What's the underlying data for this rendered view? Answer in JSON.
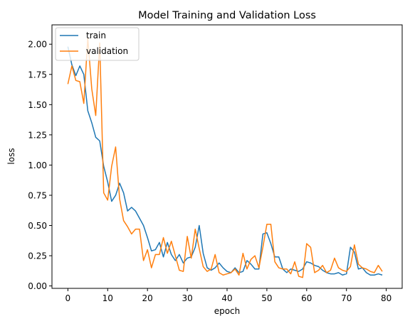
{
  "chart_data": {
    "type": "line",
    "title": "Model Training and Validation Loss",
    "xlabel": "epoch",
    "ylabel": "loss",
    "xlim": [
      -4,
      84
    ],
    "ylim": [
      -0.02,
      2.16
    ],
    "xticks": [
      0,
      10,
      20,
      30,
      40,
      50,
      60,
      70,
      80
    ],
    "yticks": [
      0.0,
      0.25,
      0.5,
      0.75,
      1.0,
      1.25,
      1.5,
      1.75,
      2.0
    ],
    "ytick_labels": [
      "0.00",
      "0.25",
      "0.50",
      "0.75",
      "1.00",
      "1.25",
      "1.50",
      "1.75",
      "2.00"
    ],
    "xtick_labels": [
      "0",
      "10",
      "20",
      "30",
      "40",
      "50",
      "60",
      "70",
      "80"
    ],
    "grid": false,
    "legend_position": "top-left",
    "series": [
      {
        "name": "train",
        "color": "#1f77b4",
        "values": [
          1.98,
          1.83,
          1.74,
          1.82,
          1.75,
          1.45,
          1.35,
          1.23,
          1.2,
          0.99,
          0.86,
          0.7,
          0.75,
          0.85,
          0.77,
          0.62,
          0.65,
          0.62,
          0.56,
          0.5,
          0.4,
          0.29,
          0.3,
          0.36,
          0.24,
          0.36,
          0.26,
          0.21,
          0.26,
          0.19,
          0.23,
          0.24,
          0.32,
          0.5,
          0.27,
          0.15,
          0.13,
          0.15,
          0.19,
          0.15,
          0.12,
          0.11,
          0.15,
          0.11,
          0.12,
          0.21,
          0.18,
          0.14,
          0.14,
          0.43,
          0.44,
          0.35,
          0.24,
          0.24,
          0.14,
          0.11,
          0.14,
          0.13,
          0.12,
          0.14,
          0.2,
          0.19,
          0.17,
          0.16,
          0.13,
          0.11,
          0.1,
          0.1,
          0.11,
          0.09,
          0.1,
          0.32,
          0.28,
          0.14,
          0.15,
          0.11,
          0.09,
          0.09,
          0.1,
          0.09
        ]
      },
      {
        "name": "validation",
        "color": "#ff7f0e",
        "values": [
          1.67,
          1.82,
          1.7,
          1.69,
          1.51,
          2.05,
          1.63,
          1.41,
          2.01,
          0.77,
          0.71,
          0.99,
          1.15,
          0.72,
          0.54,
          0.49,
          0.43,
          0.47,
          0.47,
          0.21,
          0.3,
          0.15,
          0.26,
          0.26,
          0.4,
          0.27,
          0.37,
          0.25,
          0.13,
          0.12,
          0.41,
          0.23,
          0.47,
          0.31,
          0.16,
          0.12,
          0.14,
          0.26,
          0.11,
          0.09,
          0.1,
          0.11,
          0.14,
          0.09,
          0.27,
          0.14,
          0.22,
          0.25,
          0.15,
          0.32,
          0.51,
          0.51,
          0.2,
          0.15,
          0.14,
          0.14,
          0.1,
          0.2,
          0.08,
          0.07,
          0.35,
          0.32,
          0.11,
          0.13,
          0.17,
          0.11,
          0.13,
          0.23,
          0.15,
          0.13,
          0.12,
          0.16,
          0.34,
          0.18,
          0.15,
          0.14,
          0.12,
          0.11,
          0.17,
          0.12
        ]
      }
    ]
  }
}
